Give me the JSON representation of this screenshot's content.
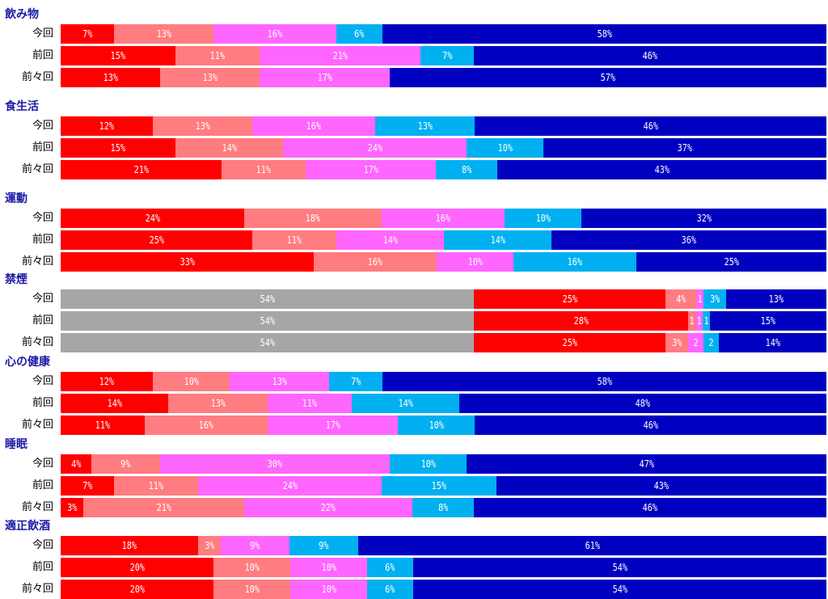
{
  "colors": {
    "gray": "#a6a6a6",
    "red": "#ff0000",
    "salmon": "#ff7c80",
    "pink": "#ff66ff",
    "cyan": "#00b0f0",
    "navy": "#0000c0",
    "title": "#1a1aa6"
  },
  "chart_data": {
    "type": "bar",
    "orientation": "horizontal",
    "stacked": true,
    "normalized": true,
    "groups": [
      {
        "title": "飲み物",
        "rows": [
          {
            "label": "今回",
            "segments": [
              {
                "color": "red",
                "value": 7,
                "text": "7%"
              },
              {
                "color": "salmon",
                "value": 13,
                "text": "13%"
              },
              {
                "color": "pink",
                "value": 16,
                "text": "16%"
              },
              {
                "color": "cyan",
                "value": 6,
                "text": "6%"
              },
              {
                "color": "navy",
                "value": 58,
                "text": "58%"
              }
            ]
          },
          {
            "label": "前回",
            "segments": [
              {
                "color": "red",
                "value": 15,
                "text": "15%"
              },
              {
                "color": "salmon",
                "value": 11,
                "text": "11%"
              },
              {
                "color": "pink",
                "value": 21,
                "text": "21%"
              },
              {
                "color": "cyan",
                "value": 7,
                "text": "7%"
              },
              {
                "color": "navy",
                "value": 46,
                "text": "46%"
              }
            ]
          },
          {
            "label": "前々回",
            "segments": [
              {
                "color": "red",
                "value": 13,
                "text": "13%"
              },
              {
                "color": "salmon",
                "value": 13,
                "text": "13%"
              },
              {
                "color": "pink",
                "value": 17,
                "text": "17%"
              },
              {
                "color": "navy",
                "value": 57,
                "text": "57%"
              }
            ]
          }
        ]
      },
      {
        "title": "食生活",
        "rows": [
          {
            "label": "今回",
            "segments": [
              {
                "color": "red",
                "value": 12,
                "text": "12%"
              },
              {
                "color": "salmon",
                "value": 13,
                "text": "13%"
              },
              {
                "color": "pink",
                "value": 16,
                "text": "16%"
              },
              {
                "color": "cyan",
                "value": 13,
                "text": "13%"
              },
              {
                "color": "navy",
                "value": 46,
                "text": "46%"
              }
            ]
          },
          {
            "label": "前回",
            "segments": [
              {
                "color": "red",
                "value": 15,
                "text": "15%"
              },
              {
                "color": "salmon",
                "value": 14,
                "text": "14%"
              },
              {
                "color": "pink",
                "value": 24,
                "text": "24%"
              },
              {
                "color": "cyan",
                "value": 10,
                "text": "10%"
              },
              {
                "color": "navy",
                "value": 37,
                "text": "37%"
              }
            ]
          },
          {
            "label": "前々回",
            "segments": [
              {
                "color": "red",
                "value": 21,
                "text": "21%"
              },
              {
                "color": "salmon",
                "value": 11,
                "text": "11%"
              },
              {
                "color": "pink",
                "value": 17,
                "text": "17%"
              },
              {
                "color": "cyan",
                "value": 8,
                "text": "8%"
              },
              {
                "color": "navy",
                "value": 43,
                "text": "43%"
              }
            ]
          }
        ]
      },
      {
        "title": "運動",
        "rows": [
          {
            "label": "今回",
            "segments": [
              {
                "color": "red",
                "value": 24,
                "text": "24%"
              },
              {
                "color": "salmon",
                "value": 18,
                "text": "18%"
              },
              {
                "color": "pink",
                "value": 16,
                "text": "16%"
              },
              {
                "color": "cyan",
                "value": 10,
                "text": "10%"
              },
              {
                "color": "navy",
                "value": 32,
                "text": "32%"
              }
            ]
          },
          {
            "label": "前回",
            "segments": [
              {
                "color": "red",
                "value": 25,
                "text": "25%"
              },
              {
                "color": "salmon",
                "value": 11,
                "text": "11%"
              },
              {
                "color": "pink",
                "value": 14,
                "text": "14%"
              },
              {
                "color": "cyan",
                "value": 14,
                "text": "14%"
              },
              {
                "color": "navy",
                "value": 36,
                "text": "36%"
              }
            ]
          },
          {
            "label": "前々回",
            "segments": [
              {
                "color": "red",
                "value": 33,
                "text": "33%"
              },
              {
                "color": "salmon",
                "value": 16,
                "text": "16%"
              },
              {
                "color": "pink",
                "value": 10,
                "text": "10%"
              },
              {
                "color": "cyan",
                "value": 16,
                "text": "16%"
              },
              {
                "color": "navy",
                "value": 25,
                "text": "25%"
              }
            ]
          }
        ]
      },
      {
        "title": "禁煙",
        "rows": [
          {
            "label": "今回",
            "segments": [
              {
                "color": "gray",
                "value": 54,
                "text": "54%"
              },
              {
                "color": "red",
                "value": 25,
                "text": "25%"
              },
              {
                "color": "salmon",
                "value": 4,
                "text": "4%"
              },
              {
                "color": "pink",
                "value": 1,
                "text": "1"
              },
              {
                "color": "cyan",
                "value": 3,
                "text": "3%"
              },
              {
                "color": "navy",
                "value": 13,
                "text": "13%"
              }
            ]
          },
          {
            "label": "前回",
            "segments": [
              {
                "color": "gray",
                "value": 54,
                "text": "54%"
              },
              {
                "color": "red",
                "value": 28,
                "text": "28%"
              },
              {
                "color": "salmon",
                "value": 1,
                "text": "1"
              },
              {
                "color": "pink",
                "value": 1,
                "text": "1"
              },
              {
                "color": "cyan",
                "value": 1,
                "text": "1"
              },
              {
                "color": "navy",
                "value": 15,
                "text": "15%"
              }
            ]
          },
          {
            "label": "前々回",
            "segments": [
              {
                "color": "gray",
                "value": 54,
                "text": "54%"
              },
              {
                "color": "red",
                "value": 25,
                "text": "25%"
              },
              {
                "color": "salmon",
                "value": 3,
                "text": "3%"
              },
              {
                "color": "pink",
                "value": 2,
                "text": "2"
              },
              {
                "color": "cyan",
                "value": 2,
                "text": "2"
              },
              {
                "color": "navy",
                "value": 14,
                "text": "14%"
              }
            ]
          }
        ]
      },
      {
        "title": "心の健康",
        "rows": [
          {
            "label": "今回",
            "segments": [
              {
                "color": "red",
                "value": 12,
                "text": "12%"
              },
              {
                "color": "salmon",
                "value": 10,
                "text": "10%"
              },
              {
                "color": "pink",
                "value": 13,
                "text": "13%"
              },
              {
                "color": "cyan",
                "value": 7,
                "text": "7%"
              },
              {
                "color": "navy",
                "value": 58,
                "text": "58%"
              }
            ]
          },
          {
            "label": "前回",
            "segments": [
              {
                "color": "red",
                "value": 14,
                "text": "14%"
              },
              {
                "color": "salmon",
                "value": 13,
                "text": "13%"
              },
              {
                "color": "pink",
                "value": 11,
                "text": "11%"
              },
              {
                "color": "cyan",
                "value": 14,
                "text": "14%"
              },
              {
                "color": "navy",
                "value": 48,
                "text": "48%"
              }
            ]
          },
          {
            "label": "前々回",
            "segments": [
              {
                "color": "red",
                "value": 11,
                "text": "11%"
              },
              {
                "color": "salmon",
                "value": 16,
                "text": "16%"
              },
              {
                "color": "pink",
                "value": 17,
                "text": "17%"
              },
              {
                "color": "cyan",
                "value": 10,
                "text": "10%"
              },
              {
                "color": "navy",
                "value": 46,
                "text": "46%"
              }
            ]
          }
        ]
      },
      {
        "title": "睡眠",
        "rows": [
          {
            "label": "今回",
            "segments": [
              {
                "color": "red",
                "value": 4,
                "text": "4%"
              },
              {
                "color": "salmon",
                "value": 9,
                "text": "9%"
              },
              {
                "color": "pink",
                "value": 30,
                "text": "30%"
              },
              {
                "color": "cyan",
                "value": 10,
                "text": "10%"
              },
              {
                "color": "navy",
                "value": 47,
                "text": "47%"
              }
            ]
          },
          {
            "label": "前回",
            "segments": [
              {
                "color": "red",
                "value": 7,
                "text": "7%"
              },
              {
                "color": "salmon",
                "value": 11,
                "text": "11%"
              },
              {
                "color": "pink",
                "value": 24,
                "text": "24%"
              },
              {
                "color": "cyan",
                "value": 15,
                "text": "15%"
              },
              {
                "color": "navy",
                "value": 43,
                "text": "43%"
              }
            ]
          },
          {
            "label": "前々回",
            "segments": [
              {
                "color": "red",
                "value": 3,
                "text": "3%"
              },
              {
                "color": "salmon",
                "value": 21,
                "text": "21%"
              },
              {
                "color": "pink",
                "value": 22,
                "text": "22%"
              },
              {
                "color": "cyan",
                "value": 8,
                "text": "8%"
              },
              {
                "color": "navy",
                "value": 46,
                "text": "46%"
              }
            ]
          }
        ]
      },
      {
        "title": "適正飲酒",
        "rows": [
          {
            "label": "今回",
            "segments": [
              {
                "color": "red",
                "value": 18,
                "text": "18%"
              },
              {
                "color": "salmon",
                "value": 3,
                "text": "3%"
              },
              {
                "color": "pink",
                "value": 9,
                "text": "9%"
              },
              {
                "color": "cyan",
                "value": 9,
                "text": "9%"
              },
              {
                "color": "navy",
                "value": 61,
                "text": "61%"
              }
            ]
          },
          {
            "label": "前回",
            "segments": [
              {
                "color": "red",
                "value": 20,
                "text": "20%"
              },
              {
                "color": "salmon",
                "value": 10,
                "text": "10%"
              },
              {
                "color": "pink",
                "value": 10,
                "text": "10%"
              },
              {
                "color": "cyan",
                "value": 6,
                "text": "6%"
              },
              {
                "color": "navy",
                "value": 54,
                "text": "54%"
              }
            ]
          },
          {
            "label": "前々回",
            "segments": [
              {
                "color": "red",
                "value": 20,
                "text": "20%"
              },
              {
                "color": "salmon",
                "value": 10,
                "text": "10%"
              },
              {
                "color": "pink",
                "value": 10,
                "text": "10%"
              },
              {
                "color": "cyan",
                "value": 6,
                "text": "6%"
              },
              {
                "color": "navy",
                "value": 54,
                "text": "54%"
              }
            ]
          }
        ]
      }
    ]
  }
}
